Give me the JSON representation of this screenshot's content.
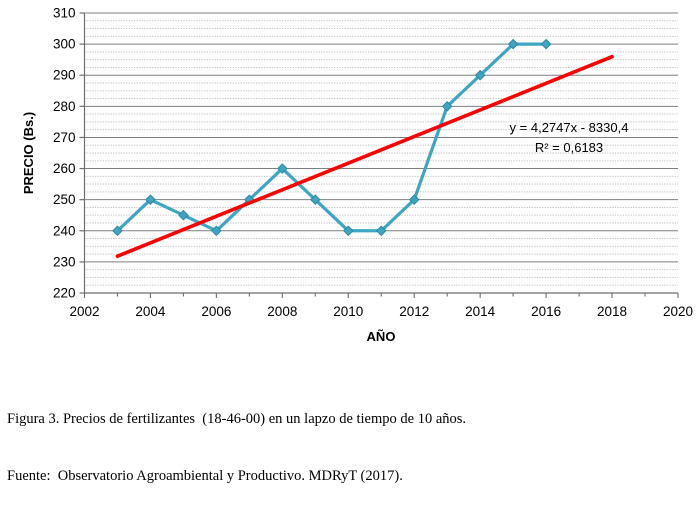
{
  "figure": {
    "caption_line1": "Figura 3. Precios de fertilizantes  (18-46-00) en un lapzo de tiempo de 10 años.",
    "caption_line2": "Fuente:  Observatorio Agroambiental y Productivo. MDRyT (2017)."
  },
  "chart_data": {
    "type": "line",
    "title": "",
    "xlabel": "AÑO",
    "ylabel": "PRECIO (Bs.)",
    "x": [
      2003,
      2004,
      2005,
      2006,
      2007,
      2008,
      2009,
      2010,
      2011,
      2012,
      2013,
      2014,
      2015,
      2016
    ],
    "series": [
      {
        "name": "Precio de fertilizantes (18-46-00)",
        "values": [
          240,
          250,
          245,
          240,
          250,
          260,
          250,
          240,
          240,
          250,
          280,
          290,
          300,
          300
        ],
        "color": "#3FA5C4",
        "marker": "diamond",
        "marker_edge": "#2E87A3"
      }
    ],
    "trendline": {
      "type": "linear",
      "slope": 4.2747,
      "intercept": -8330.4,
      "x_start": 2003,
      "x_end": 2018,
      "color": "#FF0000"
    },
    "annotations": {
      "equation": "y = 4,2747x - 8330,4",
      "r_squared": "R² = 0,6183"
    },
    "x_axis": {
      "label": "AÑO",
      "min": 2002,
      "max": 2020,
      "major_step": 2,
      "minor_step": 1,
      "tick_labels": [
        "2002",
        "2004",
        "2006",
        "2008",
        "2010",
        "2012",
        "2014",
        "2016",
        "2018",
        "2020"
      ]
    },
    "y_axis": {
      "label": "PRECIO (Bs.)",
      "min": 220,
      "max": 310,
      "major_step": 10,
      "minor_step": 2.5,
      "tick_labels": [
        "220",
        "230",
        "240",
        "250",
        "260",
        "270",
        "280",
        "290",
        "300",
        "310"
      ]
    },
    "grid": {
      "horizontal_major": true,
      "horizontal_minor": true,
      "vertical": false,
      "major_color": "#7F7F7F",
      "minor_color": "#BDBDBD",
      "axis_color": "#6E6E6E",
      "text_color": "#000000"
    },
    "legend": "none"
  }
}
